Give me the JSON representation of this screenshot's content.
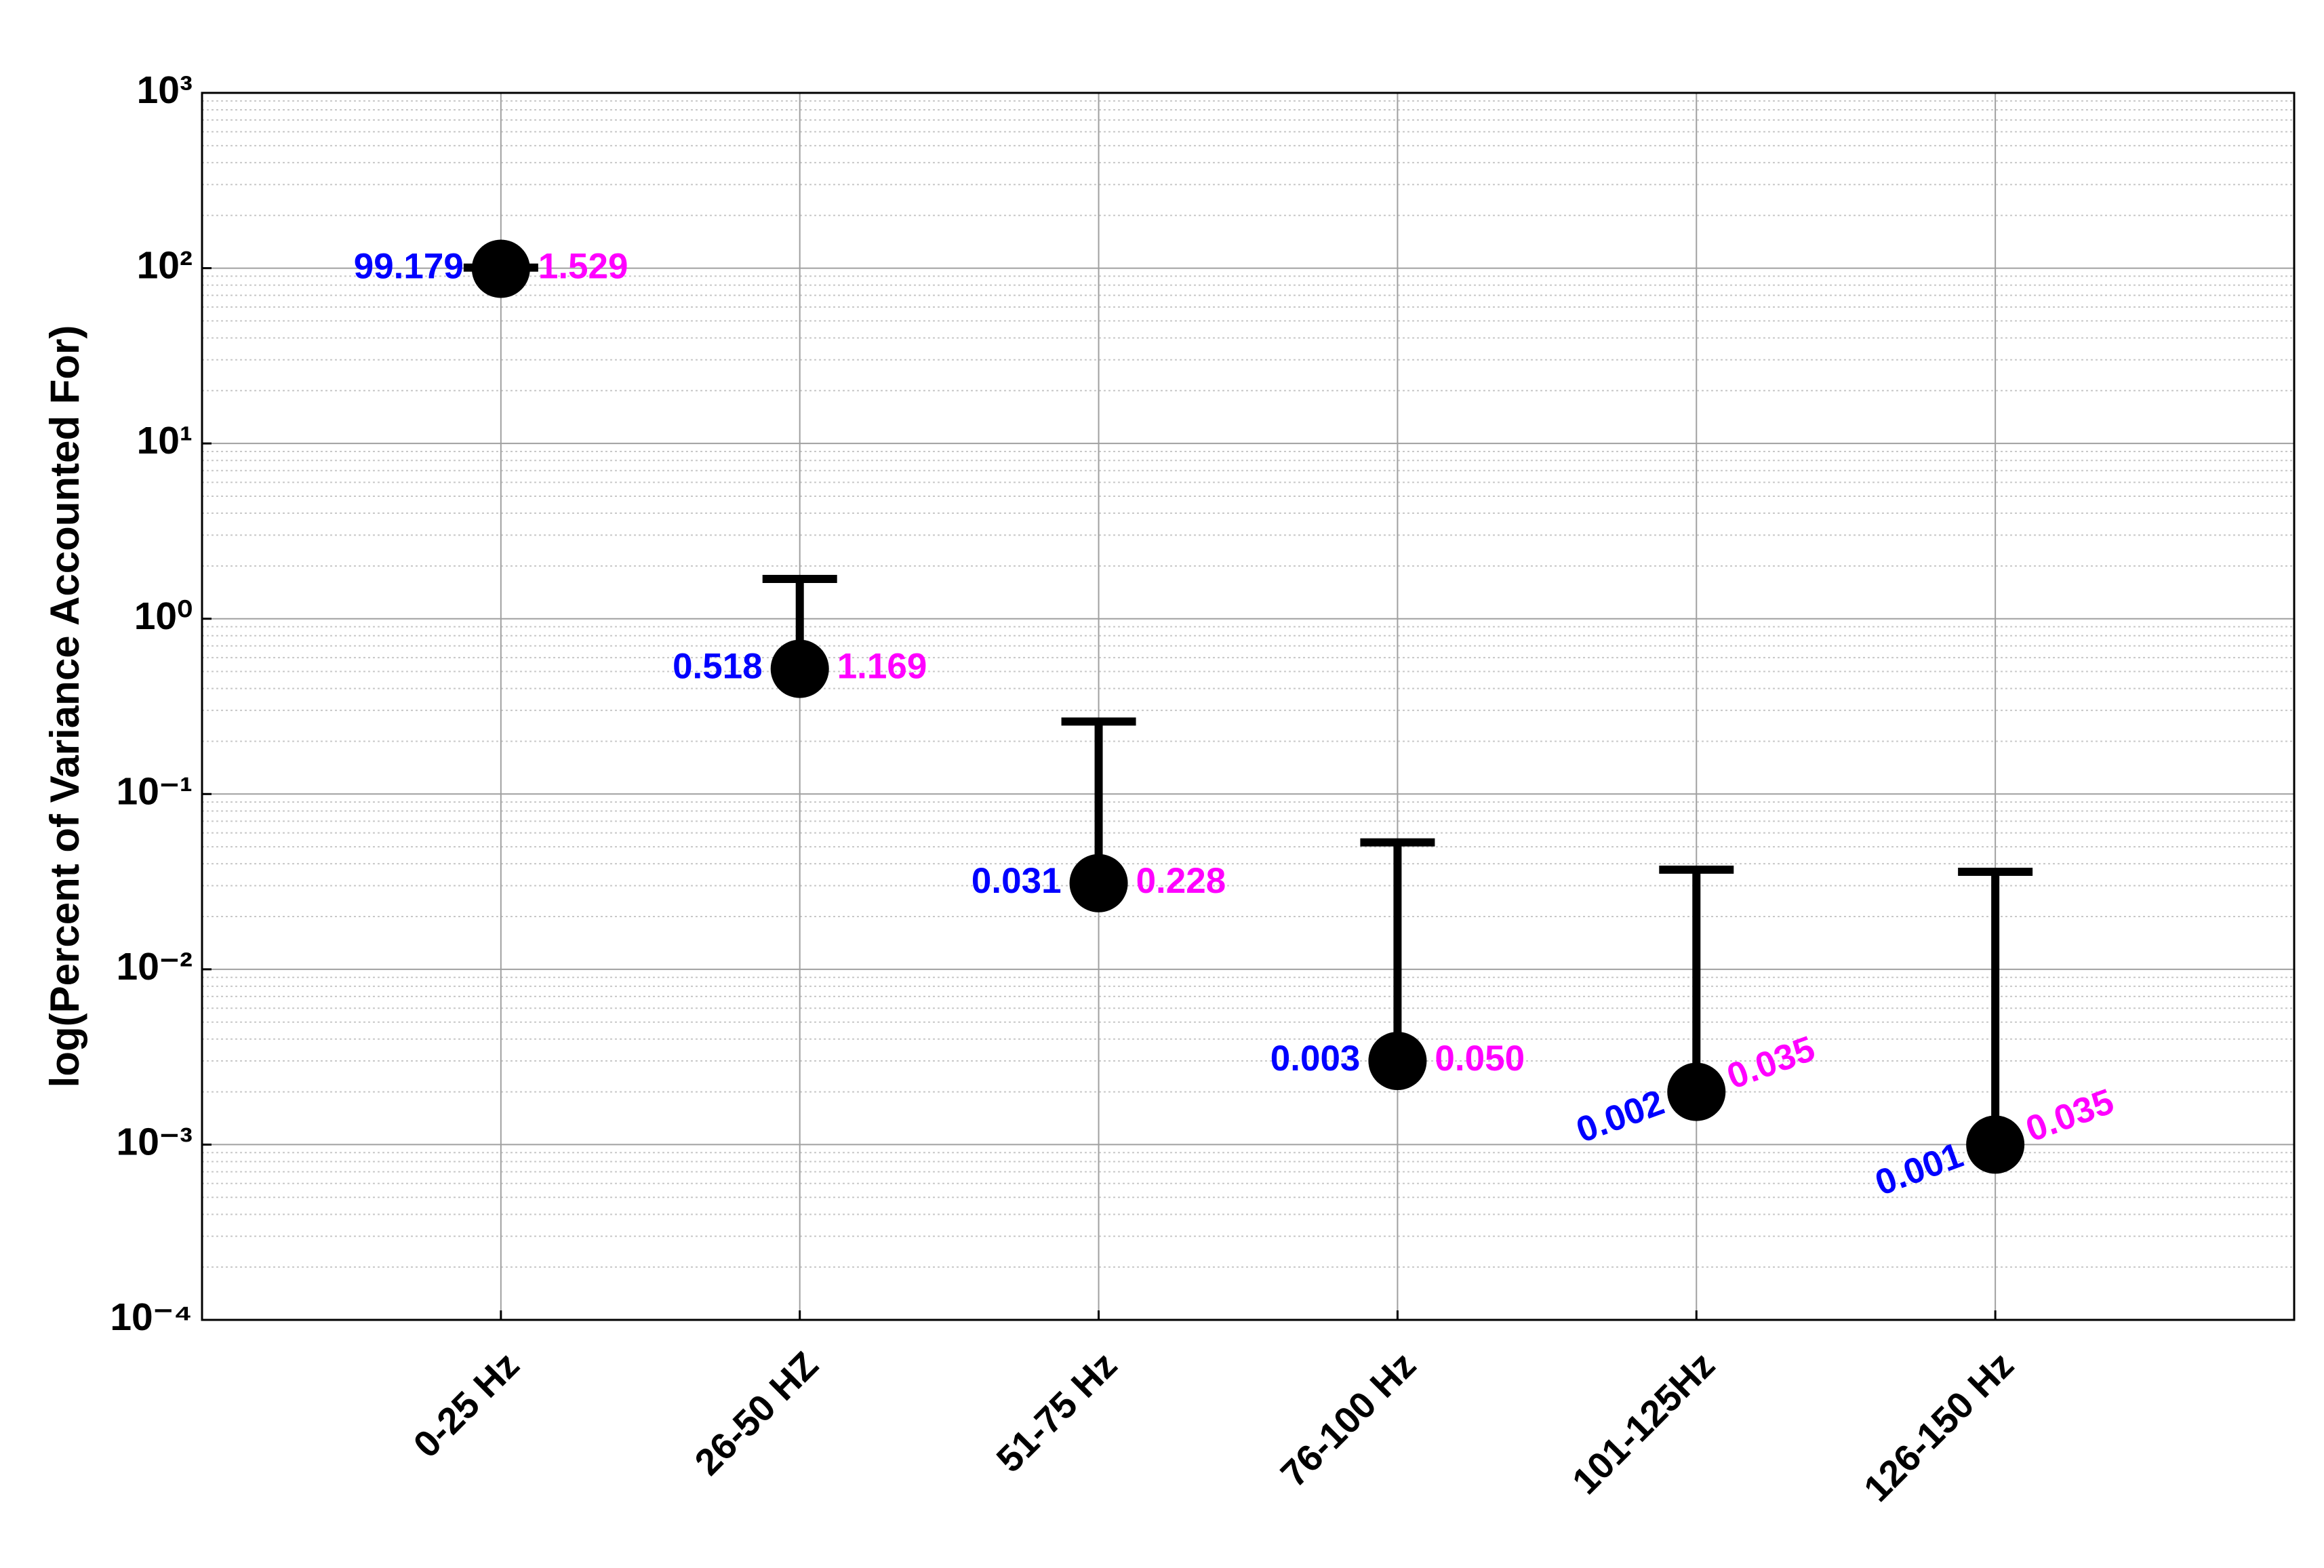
{
  "chart_data": {
    "type": "errorbar-scatter",
    "y_label": "log(Percent of Variance Accounted For)",
    "categories": [
      "0-25 Hz",
      "26-50 HZ",
      "51-75 Hz",
      "76-100 Hz",
      "101-125Hz",
      "126-150 Hz"
    ],
    "values": [
      99.179,
      0.518,
      0.031,
      0.003,
      0.002,
      0.001
    ],
    "value_labels": [
      "99.179",
      "0.518",
      "0.031",
      "0.003",
      "0.002",
      "0.001"
    ],
    "errors": [
      1.529,
      1.169,
      0.228,
      0.05,
      0.035,
      0.035
    ],
    "error_labels": [
      "1.529",
      "1.169",
      "0.228",
      "0.050",
      "0.035",
      "0.035"
    ],
    "color": "#000000",
    "value_label_color": "#0000ff",
    "error_label_color": "#ff00ff",
    "y_scale": "log",
    "ylim": [
      0.0001,
      1000
    ],
    "yticks": [
      {
        "value": 0.0001,
        "label": "10⁻⁴"
      },
      {
        "value": 0.001,
        "label": "10⁻³"
      },
      {
        "value": 0.01,
        "label": "10⁻²"
      },
      {
        "value": 0.1,
        "label": "10⁻¹"
      },
      {
        "value": 1,
        "label": "10⁰"
      },
      {
        "value": 10,
        "label": "10¹"
      },
      {
        "value": 100,
        "label": "10²"
      },
      {
        "value": 1000,
        "label": "10³"
      }
    ],
    "grid": true,
    "minor_grid": true
  }
}
